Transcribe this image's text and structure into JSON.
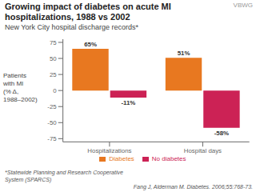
{
  "chart_data": {
    "type": "bar",
    "title": "Growing impact of diabetes on acute MI\nhospitalizations, 1988 vs 2002",
    "subtitle": "New York City hospital discharge records*",
    "ylabel": "Patients\nwith MI\n(% Δ,\n1988–2002)",
    "categories": [
      "Hospitalizations",
      "Hospital days"
    ],
    "series": [
      {
        "name": "Diabetes",
        "color": "#e87820",
        "values": [
          65,
          51
        ],
        "value_labels": [
          "65%",
          "51%"
        ]
      },
      {
        "name": "No diabetes",
        "color": "#cc2255",
        "values": [
          -11,
          -58
        ],
        "value_labels": [
          "-11%",
          "-58%"
        ]
      }
    ],
    "ylim": [
      -80,
      80
    ],
    "yticks": [
      -75,
      -50,
      -25,
      0,
      25,
      50,
      75
    ],
    "data_labels": true,
    "legend": "bottom",
    "grid": false,
    "annotations": [
      "*Statewide Planning and Research Cooperative\nSystem (SPARCS)",
      "Fang J, Alderman M. Diabetes. 2006;55:768-73.",
      "VBWG"
    ]
  }
}
